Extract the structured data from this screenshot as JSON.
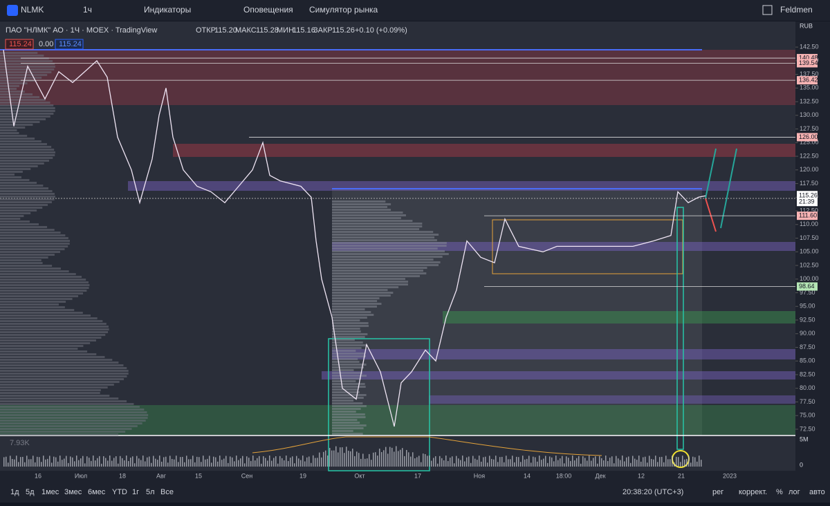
{
  "toolbar": {
    "symbol": "NLMK",
    "interval": "1ч",
    "indicators": "Индикаторы",
    "alerts": "Оповещения",
    "replay": "Симулятор рынка",
    "user": "Feldmen"
  },
  "legend": {
    "title": "ПАО \"НЛМК\" АО · 1Ч · MOEX · TradingView",
    "open_label": "ОТКР",
    "open": "115.20",
    "high_label": "МАКС",
    "high": "115.28",
    "low_label": "МИН",
    "low": "115.16",
    "close_label": "ЗАКР",
    "close": "115.26",
    "change": "+0.10 (+0.09%)",
    "bid": "115.24",
    "spread": "0.00",
    "ask": "115.24"
  },
  "price_axis": {
    "currency": "RUB",
    "ylim": [
      71.35,
      147.2
    ],
    "yticks": [
      {
        "value": 142.5,
        "label": "142.50"
      },
      {
        "value": 140,
        "label": "140.00"
      },
      {
        "value": 137.5,
        "label": "137.50"
      },
      {
        "value": 135,
        "label": "135.00"
      },
      {
        "value": 132.5,
        "label": "132.50"
      },
      {
        "value": 130,
        "label": "130.00"
      },
      {
        "value": 127.5,
        "label": "127.50"
      },
      {
        "value": 125,
        "label": "125.00"
      },
      {
        "value": 122.5,
        "label": "122.50"
      },
      {
        "value": 120,
        "label": "120.00"
      },
      {
        "value": 117.5,
        "label": "117.50"
      },
      {
        "value": 115,
        "label": "115.00"
      },
      {
        "value": 112.5,
        "label": "112.50"
      },
      {
        "value": 110,
        "label": "110.00"
      },
      {
        "value": 107.5,
        "label": "107.50"
      },
      {
        "value": 105,
        "label": "105.00"
      },
      {
        "value": 102.5,
        "label": "102.50"
      },
      {
        "value": 100,
        "label": "100.00"
      },
      {
        "value": 97.5,
        "label": "97.50"
      },
      {
        "value": 95,
        "label": "95.00"
      },
      {
        "value": 92.5,
        "label": "92.50"
      },
      {
        "value": 90,
        "label": "90.00"
      },
      {
        "value": 87.5,
        "label": "87.50"
      },
      {
        "value": 85,
        "label": "85.00"
      },
      {
        "value": 82.5,
        "label": "82.50"
      },
      {
        "value": 80,
        "label": "80.00"
      },
      {
        "value": 77.5,
        "label": "77.50"
      },
      {
        "value": 75,
        "label": "75.00"
      },
      {
        "value": 72.5,
        "label": "72.50"
      }
    ],
    "levels": [
      {
        "value": 140.48,
        "label": "140.48",
        "color": "#f8b4b4"
      },
      {
        "value": 139.54,
        "label": "139.54",
        "color": "#f8b4b4"
      },
      {
        "value": 136.42,
        "label": "136.42",
        "color": "#f8b4b4"
      },
      {
        "value": 126,
        "label": "126.00",
        "color": "#f8b4b4"
      },
      {
        "value": 111.6,
        "label": "111.60",
        "color": "#f8b4b4"
      },
      {
        "value": 98.64,
        "label": "98.64",
        "color": "#b5e6b5"
      }
    ],
    "last": {
      "value": 115.26,
      "label": "115.26",
      "countdown": "21:39"
    }
  },
  "price_path": [
    142,
    128,
    139,
    133,
    138,
    136,
    140,
    137,
    126,
    120,
    114,
    122,
    130,
    135,
    126,
    120,
    117,
    116,
    114,
    117,
    120,
    125,
    119,
    118,
    117,
    115,
    107,
    100,
    93,
    80,
    78,
    88,
    83,
    73,
    81,
    83,
    87,
    85,
    93,
    98,
    107,
    104,
    103,
    111,
    106,
    105,
    106,
    106,
    106,
    106,
    107,
    108,
    116,
    114,
    115,
    115.26
  ],
  "volume": {
    "title": "7.93K",
    "top": "5M",
    "zero": "0"
  },
  "time_axis": {
    "labels": [
      "16",
      "Июл",
      "18",
      "Авг",
      "15",
      "Сен",
      "19",
      "Окт",
      "17",
      "Ноя",
      "14",
      "18:00",
      "Дек",
      "12",
      "21",
      "2023"
    ]
  },
  "bottom_bar": {
    "ranges": [
      "1д",
      "5д",
      "1мес",
      "3мес",
      "6мес",
      "YTD",
      "1г",
      "5л",
      "Все"
    ],
    "clock": "20:38:20 (UTC+3)",
    "session": "рег",
    "adjust": "коррект.",
    "percent": "%",
    "log": "лог",
    "auto": "авто"
  }
}
